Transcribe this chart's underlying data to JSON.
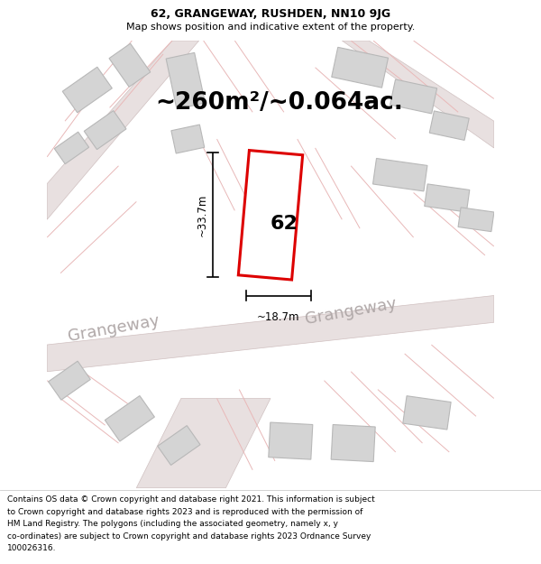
{
  "title": "62, GRANGEWAY, RUSHDEN, NN10 9JG",
  "subtitle": "Map shows position and indicative extent of the property.",
  "area_label": "~260m²/~0.064ac.",
  "number_label": "62",
  "width_label": "~18.7m",
  "height_label": "~33.7m",
  "street_label": "Grangeway",
  "footer_lines": [
    "Contains OS data © Crown copyright and database right 2021. This information is subject",
    "to Crown copyright and database rights 2023 and is reproduced with the permission of",
    "HM Land Registry. The polygons (including the associated geometry, namely x, y",
    "co-ordinates) are subject to Crown copyright and database rights 2023 Ordnance Survey",
    "100026316."
  ],
  "bg_color": "#ffffff",
  "map_bg_color": "#f7f7f7",
  "road_fill_color": "#e8e0e0",
  "road_edge_color": "#d0c0c0",
  "building_fill_color": "#d4d4d4",
  "building_edge_color": "#b8b8b8",
  "highlight_color": "#dd0000",
  "highlight_fill": "#ffffff",
  "bg_line_color": "#e8b8b8",
  "dim_color": "#000000",
  "street_color": "#b0a8a8",
  "title_fontsize": 9,
  "subtitle_fontsize": 8,
  "area_fontsize": 19,
  "number_fontsize": 16,
  "dim_fontsize": 8.5,
  "street_fontsize": 13,
  "footer_fontsize": 6.5
}
